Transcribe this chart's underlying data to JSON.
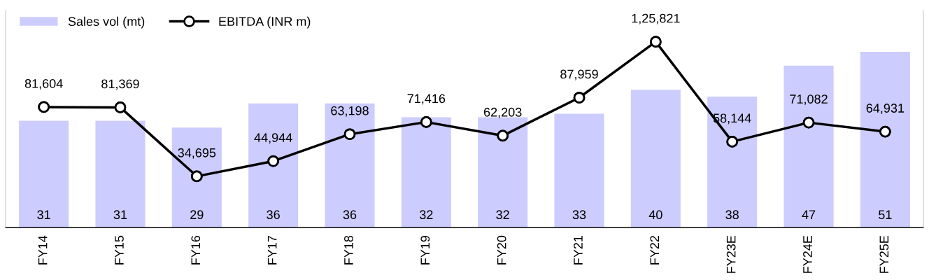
{
  "chart_data": {
    "type": "bar",
    "categories": [
      "FY14",
      "FY15",
      "FY16",
      "FY17",
      "FY18",
      "FY19",
      "FY20",
      "FY21",
      "FY22",
      "FY23E",
      "FY24E",
      "FY25E"
    ],
    "series": [
      {
        "name": "Sales vol (mt)",
        "type": "bar",
        "color": "#ccccff",
        "values": [
          31,
          31,
          29,
          36,
          36,
          32,
          32,
          33,
          40,
          38,
          47,
          51
        ],
        "value_labels": [
          "31",
          "31",
          "29",
          "36",
          "36",
          "32",
          "32",
          "33",
          "40",
          "38",
          "47",
          "51"
        ]
      },
      {
        "name": "EBITDA (INR m)",
        "type": "line",
        "axis": "y2",
        "color": "#000000",
        "values": [
          81604,
          81369,
          34695,
          44944,
          63198,
          71416,
          62203,
          87959,
          125821,
          58144,
          71082,
          64931
        ],
        "value_labels": [
          "81,604",
          "81,369",
          "34,695",
          "44,944",
          "63,198",
          "71,416",
          "62,203",
          "87,959",
          "1,25,821",
          "58,144",
          "71,082",
          "64,931"
        ]
      }
    ],
    "ylim": [
      0,
      63
    ],
    "y2lim": [
      0,
      147000
    ],
    "tick_labels": "x",
    "legend": "top left",
    "marker": "circle",
    "line_style": "solid",
    "grid": false
  }
}
